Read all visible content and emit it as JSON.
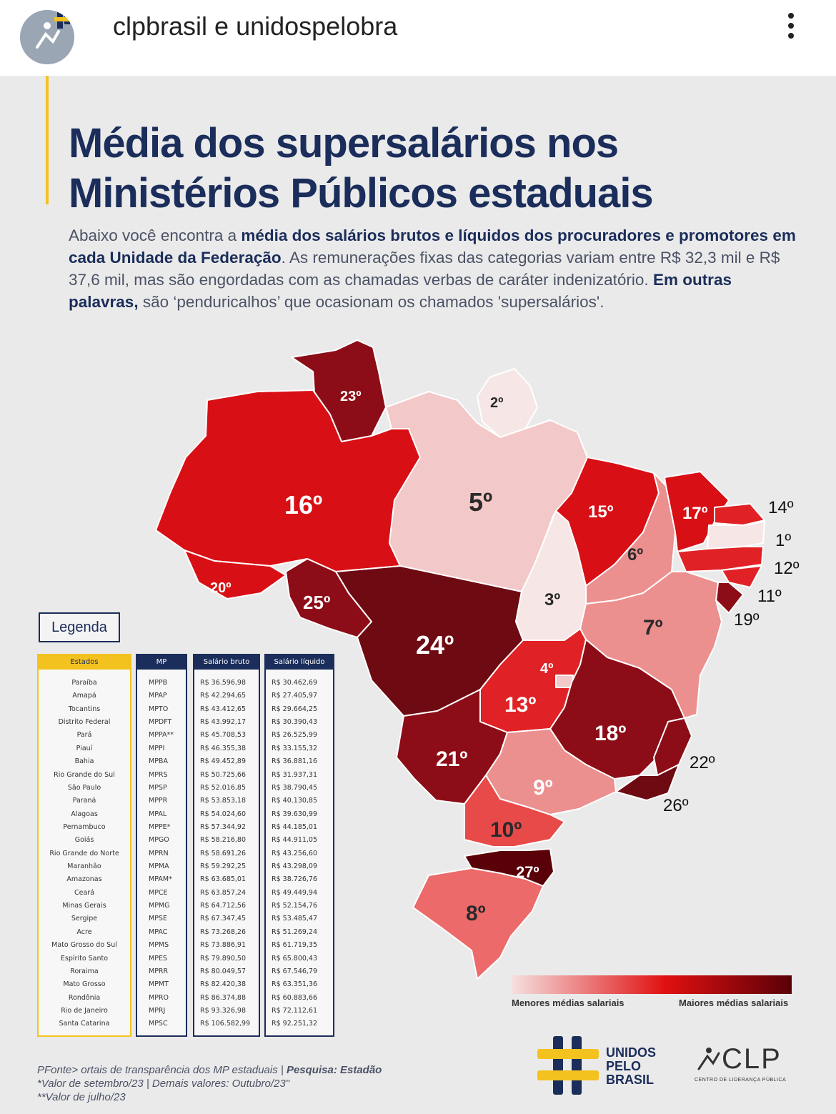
{
  "header": {
    "account_name": "clpbrasil e unidospelobra"
  },
  "poster": {
    "title_line1": "Média dos supersalários nos",
    "title_line2": "Ministérios Públicos estaduais",
    "intro": {
      "p1": "Abaixo  você encontra a ",
      "b1": "média dos salários brutos e líquidos dos procuradores e promotores em cada Unidade da Federação",
      "p2": ". As remunerações fixas das categorias variam entre R$ 32,3 mil e R$ 37,6 mil, mas  são engordadas com as chamadas verbas de caráter indenizatório. ",
      "b2": "Em outras palavras,",
      "p3": " são ‘penduricalhos’ que ocasionam os chamados 'supersalários'."
    }
  },
  "map": {
    "ranks": [
      "23º",
      "2º",
      "16º",
      "5º",
      "15º",
      "17º",
      "14º",
      "1º",
      "12º",
      "11º",
      "19º",
      "6º",
      "20º",
      "25º",
      "24º",
      "3º",
      "7º",
      "4º",
      "13º",
      "18º",
      "21º",
      "22º",
      "9º",
      "26º",
      "10º",
      "27º",
      "8º"
    ],
    "colors": {
      "darkest": "#6e0a12",
      "dark": "#8c0d17",
      "red": "#d80f14",
      "mid": "#e02226",
      "light": "#ec8f8f",
      "pale": "#f3c8c8",
      "palest": "#f7e6e6"
    }
  },
  "legend": {
    "button_label": "Legenda",
    "headers": {
      "states": "Estados",
      "mp": "MP",
      "gross": "Salário bruto",
      "net": "Salário líquido"
    },
    "rows": [
      [
        "Paraíba",
        "MPPB",
        "R$ 36.596,98",
        "R$ 30.462,69"
      ],
      [
        "Amapá",
        "MPAP",
        "R$ 42.294,65",
        "R$ 27.405,97"
      ],
      [
        "Tocantins",
        "MPTO",
        "R$ 43.412,65",
        "R$ 29.664,25"
      ],
      [
        "Distrito Federal",
        "MPDFT",
        "R$ 43.992,17",
        "R$ 30.390,43"
      ],
      [
        "Pará",
        "MPPA**",
        "R$ 45.708,53",
        "R$ 26.525,99"
      ],
      [
        "Piauí",
        "MPPI",
        "R$ 46.355,38",
        "R$ 33.155,32"
      ],
      [
        "Bahia",
        "MPBA",
        "R$ 49.452,89",
        "R$ 36.881,16"
      ],
      [
        "Rio Grande do Sul",
        "MPRS",
        "R$ 50.725,66",
        "R$ 31.937,31"
      ],
      [
        "São Paulo",
        "MPSP",
        "R$ 52.016,85",
        "R$ 38.790,45"
      ],
      [
        "Paraná",
        "MPPR",
        "R$ 53.853,18",
        "R$ 40.130,85"
      ],
      [
        "Alagoas",
        "MPAL",
        "R$ 54.024,60",
        "R$ 39.630,99"
      ],
      [
        "Pernambuco",
        "MPPE*",
        "R$ 57.344,92",
        "R$ 44.185,01"
      ],
      [
        "Goiás",
        "MPGO",
        "R$ 58.216,80",
        "R$ 44.911,05"
      ],
      [
        "Rio Grande do Norte",
        "MPRN",
        "R$ 58.691,26",
        "R$ 43.256,60"
      ],
      [
        "Maranhão",
        "MPMA",
        "R$ 59.292,25",
        "R$ 43.298,09"
      ],
      [
        "Amazonas",
        "MPAM*",
        "R$ 63.685,01",
        "R$ 38.726,76"
      ],
      [
        "Ceará",
        "MPCE",
        "R$ 63.857,24",
        "R$ 49.449,94"
      ],
      [
        "Minas Gerais",
        "MPMG",
        "R$ 64.712,56",
        "R$ 52.154,76"
      ],
      [
        "Sergipe",
        "MPSE",
        "R$ 67.347,45",
        "R$ 53.485,47"
      ],
      [
        "Acre",
        "MPAC",
        "R$ 73.268,26",
        "R$ 51.269,24"
      ],
      [
        "Mato Grosso do Sul",
        "MPMS",
        "R$ 73.886,91",
        "R$ 61.719,35"
      ],
      [
        "Espírito Santo",
        "MPES",
        "R$ 79.890,50",
        "R$ 65.800,43"
      ],
      [
        "Roraima",
        "MPRR",
        "R$ 80.049,57",
        "R$ 67.546,79"
      ],
      [
        "Mato Grosso",
        "MPMT",
        "R$ 82.420,38",
        "R$ 63.351,36"
      ],
      [
        "Rondônia",
        "MPRO",
        "R$ 86.374,88",
        "R$ 60.883,66"
      ],
      [
        "Rio de Janeiro",
        "MPRJ",
        "R$ 93.326,98",
        "R$ 72.112,61"
      ],
      [
        "Santa Catarina",
        "MPSC",
        "R$ 106.582,99",
        "R$ 92.251,32"
      ]
    ]
  },
  "scale": {
    "low_label": "Menores médias salariais",
    "high_label": "Maiores médias salariais"
  },
  "footer": {
    "line1_a": "PFonte> ortais de transparência dos MP estaduais  |  ",
    "line1_b": "Pesquisa: Estadão",
    "line2": "*Valor de setembro/23  |  Demais valores: Outubro/23\"",
    "line3": "**Valor de julho/23"
  },
  "logos": {
    "unidos_line1": "UNIDOS",
    "unidos_line2": "PELO",
    "unidos_line3": "BRASIL",
    "clp_text": "CLP",
    "clp_sub": "CENTRO DE LIDERANÇA PÚBLICA"
  }
}
